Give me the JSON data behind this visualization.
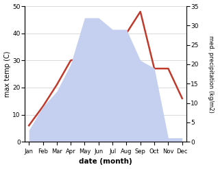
{
  "months": [
    "Jan",
    "Feb",
    "Mar",
    "Apr",
    "May",
    "Jun",
    "Jul",
    "Aug",
    "Sep",
    "Oct",
    "Nov",
    "Dec"
  ],
  "month_indices": [
    0,
    1,
    2,
    3,
    4,
    5,
    6,
    7,
    8,
    9,
    10,
    11
  ],
  "temperature": [
    6,
    13,
    21,
    30,
    31,
    37,
    38,
    40,
    48,
    27,
    27,
    16
  ],
  "precipitation": [
    3,
    9,
    13,
    20,
    32,
    32,
    29,
    29,
    21,
    19,
    1,
    1
  ],
  "temp_color": "#c0392b",
  "precip_fill_color": "#c5cff0",
  "precip_edge_color": "#aab4e8",
  "temp_ylim": [
    0,
    50
  ],
  "precip_ylim": [
    0,
    35
  ],
  "temp_yticks": [
    0,
    10,
    20,
    30,
    40,
    50
  ],
  "precip_yticks": [
    0,
    5,
    10,
    15,
    20,
    25,
    30,
    35
  ],
  "xlabel": "date (month)",
  "ylabel_left": "max temp (C)",
  "ylabel_right": "med. precipitation (kg/m2)"
}
